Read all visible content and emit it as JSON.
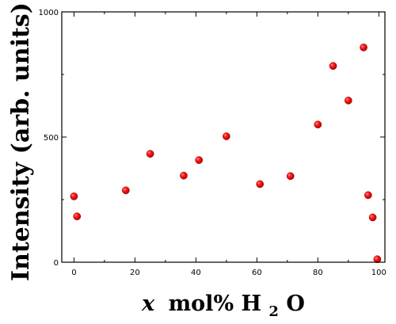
{
  "chart_data": {
    "type": "scatter",
    "xlabel": {
      "variable": "x",
      "text": "mol% H",
      "subscript": "2",
      "suffix": "O"
    },
    "ylabel": "Intensity (arb. units)",
    "xlim": [
      -4,
      102
    ],
    "ylim": [
      0,
      1000
    ],
    "xticks": [
      0,
      20,
      40,
      60,
      80,
      100
    ],
    "yticks": [
      0,
      500,
      1000
    ],
    "marker_color": "#e00000",
    "grid": false,
    "series": [
      {
        "x": [
          0,
          1,
          17,
          25,
          36,
          41,
          50,
          61,
          71,
          80,
          85,
          90,
          95,
          96.5,
          98,
          99.5
        ],
        "y": [
          263,
          183,
          287,
          433,
          346,
          408,
          503,
          312,
          344,
          550,
          784,
          646,
          858,
          268,
          179,
          12
        ]
      }
    ]
  }
}
